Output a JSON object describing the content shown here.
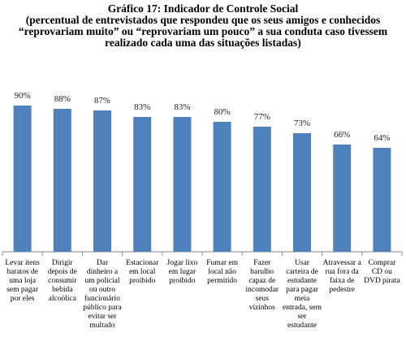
{
  "chart_data": {
    "type": "bar",
    "title": "Gráfico 17: Indicador de Controle Social",
    "subtitle": "(percentual de entrevistados que respondeu que os seus amigos e conhecidos “reprovariam muito” ou “reprovariam um pouco” a sua conduta caso tivessem realizado cada uma das situações listadas)",
    "categories": [
      "Levar itens baratos de uma loja sem pagar por eles",
      "Dirigir depois de consumir bebida alcoólica",
      "Dar dinheiro a um policial ou outro funcionário público para evitar ser multado",
      "Estacionar em local proibido",
      "Jogar lixo em lugar proibido",
      "Fumar em local não permitido",
      "Fazer barulho capaz de incomodar seus vizinhos",
      "Usar carteira de estudante para pagar meia entrada, sem ser estudante",
      "Atravessar a rua fora da faixa de pedestre",
      "Comprar CD ou DVD pirata"
    ],
    "values": [
      90,
      88,
      87,
      83,
      83,
      80,
      77,
      73,
      66,
      64
    ],
    "value_labels": [
      "90%",
      "88%",
      "87%",
      "83%",
      "83%",
      "80%",
      "77%",
      "73%",
      "66%",
      "64%"
    ],
    "color": "#4f81bd"
  }
}
